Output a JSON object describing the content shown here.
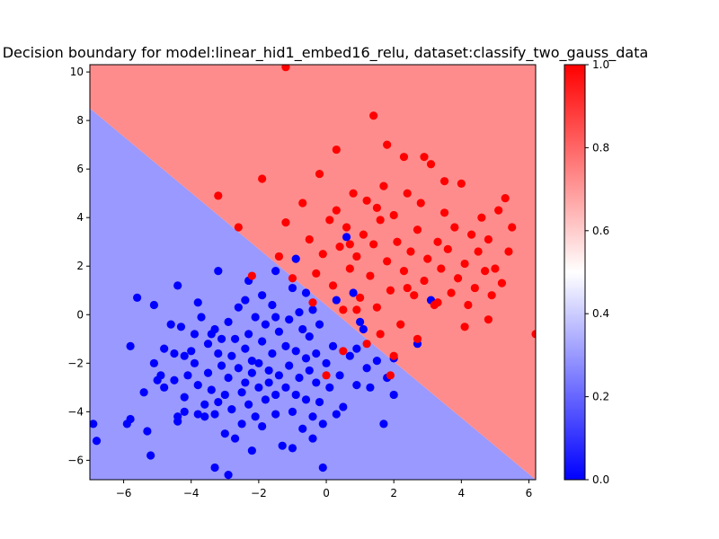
{
  "chart_data": {
    "type": "scatter",
    "title": "Decision boundary for model:linear_hid1_embed16_relu, dataset:classify_two_gauss_data",
    "xlabel": "",
    "ylabel": "",
    "xlim": [
      -7.0,
      6.2
    ],
    "ylim": [
      -6.8,
      10.3
    ],
    "x_ticks": [
      -6,
      -4,
      -2,
      0,
      2,
      4,
      6
    ],
    "y_ticks": [
      -6,
      -4,
      -2,
      0,
      2,
      4,
      6,
      8,
      10
    ],
    "grid": false,
    "decision_regions": [
      {
        "label": "class 0",
        "color": "#9999ff"
      },
      {
        "label": "class 1",
        "color": "#ff8c8c"
      }
    ],
    "decision_boundary": {
      "x": [
        -7.0,
        6.2
      ],
      "y": [
        8.5,
        -6.8
      ]
    },
    "colorbar": {
      "colormap": "bwr",
      "range": [
        0.0,
        1.0
      ],
      "ticks": [
        "0.0",
        "0.2",
        "0.4",
        "0.6",
        "0.8",
        "1.0"
      ],
      "colors": {
        "low": "#0000ff",
        "mid": "#ffffff",
        "high": "#ff0000"
      }
    },
    "series": [
      {
        "color": "#0000ff",
        "points": [
          [
            -6.9,
            -4.5
          ],
          [
            -6.8,
            -5.2
          ],
          [
            -5.9,
            -4.5
          ],
          [
            -5.8,
            -4.3
          ],
          [
            -5.6,
            0.7
          ],
          [
            -5.8,
            -1.3
          ],
          [
            -5.4,
            -3.2
          ],
          [
            -5.3,
            -4.8
          ],
          [
            -5.0,
            -2.7
          ],
          [
            -5.1,
            -2.0
          ],
          [
            -5.1,
            0.4
          ],
          [
            -4.9,
            -2.5
          ],
          [
            -4.8,
            -1.4
          ],
          [
            -4.8,
            -3.0
          ],
          [
            -4.6,
            -0.4
          ],
          [
            -4.5,
            -2.7
          ],
          [
            -4.5,
            -1.6
          ],
          [
            -4.4,
            -4.2
          ],
          [
            -4.4,
            -4.4
          ],
          [
            -4.3,
            -0.5
          ],
          [
            -4.2,
            -1.7
          ],
          [
            -4.2,
            -3.4
          ],
          [
            -4.1,
            -2.5
          ],
          [
            -4.0,
            -1.5
          ],
          [
            -3.9,
            -0.8
          ],
          [
            -3.9,
            -2.0
          ],
          [
            -3.8,
            -2.9
          ],
          [
            -3.8,
            -4.1
          ],
          [
            -3.7,
            -0.1
          ],
          [
            -3.6,
            -3.7
          ],
          [
            -3.6,
            -4.2
          ],
          [
            -3.5,
            -1.2
          ],
          [
            -3.5,
            -2.4
          ],
          [
            -3.4,
            -0.8
          ],
          [
            -3.4,
            -3.1
          ],
          [
            -3.3,
            -4.1
          ],
          [
            -3.3,
            -6.3
          ],
          [
            -3.2,
            -1.6
          ],
          [
            -3.2,
            -3.6
          ],
          [
            -3.1,
            -2.1
          ],
          [
            -3.1,
            -1.0
          ],
          [
            -3.0,
            -3.3
          ],
          [
            -3.0,
            -4.9
          ],
          [
            -2.9,
            -0.3
          ],
          [
            -2.9,
            -2.6
          ],
          [
            -2.8,
            -1.7
          ],
          [
            -2.8,
            -3.9
          ],
          [
            -2.7,
            -1.0
          ],
          [
            -2.7,
            -5.1
          ],
          [
            -2.6,
            -2.2
          ],
          [
            -2.6,
            0.3
          ],
          [
            -2.5,
            -3.2
          ],
          [
            -2.5,
            -4.5
          ],
          [
            -2.4,
            -1.4
          ],
          [
            -2.4,
            -2.8
          ],
          [
            -2.3,
            -0.8
          ],
          [
            -2.3,
            -3.7
          ],
          [
            -2.2,
            -1.9
          ],
          [
            -2.2,
            -2.4
          ],
          [
            -2.1,
            -0.1
          ],
          [
            -2.1,
            -4.2
          ],
          [
            -2.0,
            -2.0
          ],
          [
            -2.0,
            -3.0
          ],
          [
            -1.9,
            -1.1
          ],
          [
            -1.9,
            -4.6
          ],
          [
            -1.8,
            -0.4
          ],
          [
            -1.8,
            -3.5
          ],
          [
            -1.7,
            -2.3
          ],
          [
            -1.7,
            -2.8
          ],
          [
            -1.6,
            0.4
          ],
          [
            -1.6,
            -1.6
          ],
          [
            -1.5,
            -3.3
          ],
          [
            -1.5,
            -4.1
          ],
          [
            -1.4,
            -0.7
          ],
          [
            -1.4,
            -2.5
          ],
          [
            -1.3,
            -5.4
          ],
          [
            -1.2,
            -1.3
          ],
          [
            -1.2,
            -3.0
          ],
          [
            -1.1,
            -0.2
          ],
          [
            -1.1,
            -2.1
          ],
          [
            -1.0,
            -4.0
          ],
          [
            -1.0,
            -5.5
          ],
          [
            -0.9,
            -1.5
          ],
          [
            -0.9,
            -3.3
          ],
          [
            -0.8,
            0.1
          ],
          [
            -0.8,
            -2.6
          ],
          [
            -0.7,
            -0.6
          ],
          [
            -0.7,
            -4.7
          ],
          [
            -0.6,
            -1.8
          ],
          [
            -0.6,
            -3.5
          ],
          [
            -0.5,
            -0.9
          ],
          [
            -0.5,
            -2.3
          ],
          [
            -0.4,
            -4.2
          ],
          [
            -0.4,
            -5.1
          ],
          [
            -0.3,
            -1.6
          ],
          [
            -0.3,
            -2.8
          ],
          [
            -0.2,
            -3.6
          ],
          [
            -0.2,
            -0.4
          ],
          [
            -0.1,
            -4.5
          ],
          [
            0.0,
            -2.0
          ],
          [
            0.1,
            -3.0
          ],
          [
            0.2,
            -1.3
          ],
          [
            0.3,
            -4.1
          ],
          [
            0.4,
            -2.5
          ],
          [
            0.5,
            -3.8
          ],
          [
            0.6,
            3.2
          ],
          [
            0.7,
            -1.7
          ],
          [
            0.8,
            0.9
          ],
          [
            0.9,
            -2.9
          ],
          [
            1.0,
            -0.3
          ],
          [
            1.1,
            -0.6
          ],
          [
            1.2,
            -2.2
          ],
          [
            1.3,
            -3.0
          ],
          [
            1.5,
            -1.9
          ],
          [
            1.7,
            -4.5
          ],
          [
            1.8,
            -2.6
          ],
          [
            2.0,
            -1.8
          ],
          [
            2.0,
            -3.3
          ],
          [
            -2.3,
            1.4
          ],
          [
            -1.5,
            1.8
          ],
          [
            -1.9,
            0.8
          ],
          [
            -1.5,
            -0.1
          ],
          [
            -0.9,
            2.3
          ],
          [
            -0.6,
            0.9
          ],
          [
            -3.2,
            1.8
          ],
          [
            -2.4,
            0.6
          ],
          [
            -3.3,
            -0.6
          ],
          [
            -4.4,
            1.2
          ],
          [
            0.9,
            -1.4
          ],
          [
            2.7,
            -1.2
          ],
          [
            3.1,
            0.6
          ],
          [
            -1.0,
            1.1
          ],
          [
            -0.4,
            0.2
          ],
          [
            0.3,
            0.6
          ],
          [
            -2.2,
            -5.6
          ],
          [
            -0.1,
            -6.3
          ],
          [
            -2.9,
            -6.6
          ],
          [
            -5.2,
            -5.8
          ],
          [
            -4.2,
            -4.0
          ],
          [
            -3.8,
            0.5
          ]
        ]
      },
      {
        "color": "#ff0000",
        "points": [
          [
            -1.2,
            10.2
          ],
          [
            -3.2,
            4.9
          ],
          [
            -2.6,
            3.6
          ],
          [
            -2.2,
            1.6
          ],
          [
            -1.9,
            5.6
          ],
          [
            -1.4,
            2.4
          ],
          [
            -1.2,
            3.8
          ],
          [
            -1.0,
            1.5
          ],
          [
            -0.7,
            4.6
          ],
          [
            -0.5,
            3.1
          ],
          [
            -0.4,
            0.5
          ],
          [
            -0.2,
            5.8
          ],
          [
            -0.1,
            2.5
          ],
          [
            0.1,
            3.9
          ],
          [
            0.2,
            1.2
          ],
          [
            0.3,
            4.3
          ],
          [
            0.4,
            2.8
          ],
          [
            0.5,
            0.2
          ],
          [
            0.6,
            3.6
          ],
          [
            0.7,
            1.9
          ],
          [
            0.8,
            5.0
          ],
          [
            0.9,
            2.4
          ],
          [
            1.0,
            0.7
          ],
          [
            1.1,
            3.3
          ],
          [
            1.2,
            4.7
          ],
          [
            1.3,
            1.6
          ],
          [
            1.4,
            2.9
          ],
          [
            1.5,
            0.3
          ],
          [
            1.6,
            3.9
          ],
          [
            1.7,
            5.3
          ],
          [
            1.8,
            2.2
          ],
          [
            1.9,
            1.0
          ],
          [
            2.0,
            4.1
          ],
          [
            2.1,
            3.0
          ],
          [
            2.2,
            -0.4
          ],
          [
            2.3,
            1.8
          ],
          [
            2.4,
            5.0
          ],
          [
            2.5,
            2.6
          ],
          [
            2.6,
            0.8
          ],
          [
            2.7,
            3.5
          ],
          [
            2.8,
            4.6
          ],
          [
            2.9,
            1.4
          ],
          [
            3.0,
            2.3
          ],
          [
            3.1,
            6.2
          ],
          [
            3.2,
            0.4
          ],
          [
            3.3,
            3.0
          ],
          [
            3.4,
            1.9
          ],
          [
            3.5,
            4.2
          ],
          [
            3.6,
            2.7
          ],
          [
            3.7,
            0.9
          ],
          [
            3.8,
            3.6
          ],
          [
            3.9,
            1.5
          ],
          [
            4.0,
            5.4
          ],
          [
            4.1,
            2.1
          ],
          [
            4.2,
            0.4
          ],
          [
            4.3,
            3.3
          ],
          [
            4.4,
            1.1
          ],
          [
            4.5,
            2.6
          ],
          [
            4.6,
            4.0
          ],
          [
            4.7,
            1.8
          ],
          [
            4.8,
            3.1
          ],
          [
            4.9,
            0.8
          ],
          [
            5.0,
            1.9
          ],
          [
            5.1,
            4.3
          ],
          [
            5.2,
            1.3
          ],
          [
            5.3,
            4.8
          ],
          [
            5.4,
            2.6
          ],
          [
            5.5,
            3.6
          ],
          [
            6.2,
            -0.8
          ],
          [
            1.4,
            8.2
          ],
          [
            0.3,
            6.8
          ],
          [
            1.8,
            7.0
          ],
          [
            2.3,
            6.5
          ],
          [
            2.9,
            6.5
          ],
          [
            3.5,
            5.5
          ],
          [
            0.9,
            0.2
          ],
          [
            0.5,
            -1.5
          ],
          [
            0.0,
            -2.5
          ],
          [
            1.9,
            -2.5
          ],
          [
            2.7,
            -1.0
          ],
          [
            1.6,
            -0.8
          ],
          [
            1.2,
            -1.2
          ],
          [
            2.0,
            -1.7
          ],
          [
            0.7,
            2.9
          ],
          [
            -0.3,
            1.7
          ],
          [
            3.3,
            0.5
          ],
          [
            4.1,
            -0.5
          ],
          [
            4.8,
            -0.2
          ],
          [
            2.4,
            1.1
          ],
          [
            1.5,
            4.4
          ]
        ]
      }
    ]
  }
}
